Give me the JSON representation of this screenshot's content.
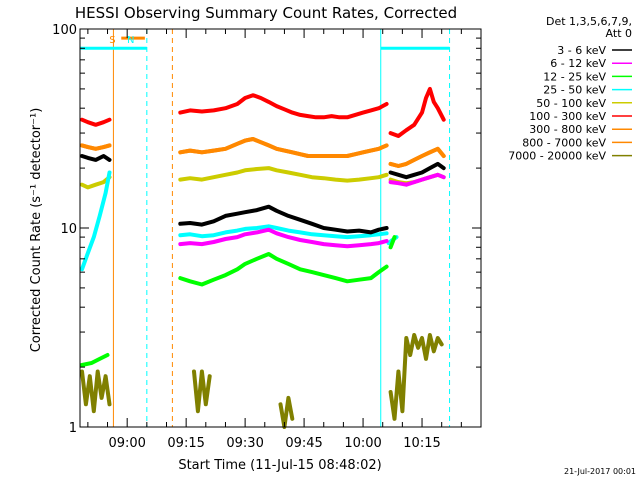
{
  "chart_data": {
    "type": "line",
    "title": "HESSI Observing Summary Count Rates, Corrected",
    "xlabel": "Start Time (11-Jul-15 08:48:02)",
    "ylabel": "Corrected Count Rate (s⁻¹ detector⁻¹)",
    "y_scale": "log",
    "ylim": [
      1,
      100
    ],
    "y_ticks": [
      {
        "value": 1,
        "label": "1"
      },
      {
        "value": 10,
        "label": "10"
      },
      {
        "value": 100,
        "label": "100"
      }
    ],
    "xlim_min": [
      528.0,
      630.0
    ],
    "x_ticks": [
      {
        "value": 540,
        "label": "09:00"
      },
      {
        "value": 555,
        "label": "09:15"
      },
      {
        "value": 570,
        "label": "09:30"
      },
      {
        "value": 585,
        "label": "09:45"
      },
      {
        "value": 600,
        "label": "10:00"
      },
      {
        "value": 615,
        "label": "10:15"
      }
    ],
    "legend": {
      "placement": "right",
      "header": [
        "Det 1,3,5,6,7,9,",
        "Att 0"
      ]
    },
    "series": [
      {
        "name": "3 - 6 keV",
        "color": "#000000",
        "segments": [
          {
            "x": [
              528.5,
              530,
              532,
              534,
              535.5
            ],
            "y": [
              23,
              22.5,
              22,
              23,
              22
            ]
          },
          {
            "x": [
              553.5,
              556,
              559,
              562,
              565,
              568,
              570,
              573,
              576,
              578,
              581,
              584,
              587,
              590,
              593,
              596,
              599,
              602,
              604,
              606
            ],
            "y": [
              10.5,
              10.6,
              10.4,
              10.8,
              11.5,
              11.8,
              12,
              12.3,
              12.8,
              12.2,
              11.5,
              11,
              10.5,
              10,
              9.8,
              9.6,
              9.7,
              9.5,
              9.8,
              10
            ]
          },
          {
            "x": [
              607,
              609,
              611,
              613,
              615,
              617,
              619,
              620.5
            ],
            "y": [
              19,
              18.5,
              18,
              18.5,
              19,
              20,
              21,
              20
            ]
          }
        ]
      },
      {
        "name": "6 - 12 keV",
        "color": "#ff00ff",
        "segments": [
          {
            "x": [
              553.5,
              556,
              559,
              562,
              565,
              568,
              570,
              573,
              576,
              578,
              581,
              584,
              587,
              590,
              593,
              596,
              599,
              602,
              604,
              606
            ],
            "y": [
              8.3,
              8.4,
              8.3,
              8.5,
              8.8,
              9,
              9.3,
              9.5,
              9.8,
              9.4,
              9,
              8.7,
              8.5,
              8.3,
              8.2,
              8.1,
              8.2,
              8.3,
              8.4,
              8.6
            ]
          },
          {
            "x": [
              607,
              609,
              611,
              613,
              615,
              617,
              619,
              620.5
            ],
            "y": [
              17,
              16.8,
              16.5,
              17,
              17.5,
              18,
              18.5,
              18
            ]
          }
        ]
      },
      {
        "name": "12 - 25 keV",
        "color": "#00ff00",
        "segments": [
          {
            "x": [
              528.5,
              531,
              533,
              535
            ],
            "y": [
              2.05,
              2.1,
              2.2,
              2.3
            ]
          },
          {
            "x": [
              553.5,
              556,
              559,
              562,
              565,
              568,
              570,
              573,
              576,
              578,
              581,
              584,
              587,
              590,
              593,
              596,
              599,
              602,
              604,
              606
            ],
            "y": [
              5.6,
              5.4,
              5.2,
              5.5,
              5.8,
              6.2,
              6.6,
              7,
              7.4,
              7,
              6.6,
              6.2,
              6,
              5.8,
              5.6,
              5.4,
              5.5,
              5.6,
              6,
              6.4
            ]
          },
          {
            "x": [
              607,
              608
            ],
            "y": [
              8,
              9
            ]
          }
        ]
      },
      {
        "name": "25 - 50 keV",
        "color": "#00ffff",
        "segments": [
          {
            "x": [
              528.5,
              530,
              531.5,
              533,
              534.5,
              535.5
            ],
            "y": [
              6.2,
              7.5,
              9,
              11.5,
              15,
              19
            ]
          },
          {
            "x": [
              553.5,
              556,
              559,
              562,
              565,
              568,
              570,
              573,
              576,
              578,
              581,
              584,
              587,
              590,
              593,
              596,
              599,
              602,
              604,
              606
            ],
            "y": [
              9.2,
              9.3,
              9.1,
              9.2,
              9.5,
              9.7,
              9.9,
              10,
              10.2,
              10,
              9.7,
              9.5,
              9.3,
              9.2,
              9.1,
              9,
              9.1,
              9.2,
              9.3,
              9.4
            ]
          },
          {
            "x": [
              606.5,
              607.5,
              608.5
            ],
            "y": [
              8.4,
              8.7,
              9
            ]
          }
        ]
      },
      {
        "name": "50 - 100 keV",
        "color": "#cccc00",
        "segments": [
          {
            "x": [
              528.5,
              530,
              532,
              534,
              535.5
            ],
            "y": [
              16.5,
              16,
              16.5,
              17,
              18
            ]
          },
          {
            "x": [
              553.5,
              556,
              559,
              562,
              565,
              568,
              570,
              573,
              576,
              578,
              581,
              584,
              587,
              590,
              593,
              596,
              599,
              602,
              604,
              606
            ],
            "y": [
              17.5,
              17.8,
              17.5,
              18,
              18.5,
              19,
              19.5,
              19.8,
              20,
              19.5,
              19,
              18.5,
              18,
              17.8,
              17.5,
              17.3,
              17.5,
              17.8,
              18,
              18.5
            ]
          },
          {
            "x": [
              607,
              609,
              611,
              613,
              615,
              617,
              619,
              620.5
            ],
            "y": [
              17.5,
              17,
              16.8,
              17,
              17.5,
              18,
              18.5,
              18
            ]
          }
        ]
      },
      {
        "name": "100 - 300 keV",
        "color": "#ff0000",
        "segments": [
          {
            "x": [
              528.5,
              530,
              532,
              534,
              535.5
            ],
            "y": [
              35,
              34,
              33,
              34,
              35
            ]
          },
          {
            "x": [
              553.5,
              556,
              559,
              562,
              565,
              568,
              570,
              572,
              574,
              576,
              578,
              580,
              582,
              584,
              586,
              588,
              590,
              592,
              594,
              596,
              598,
              600,
              602,
              604,
              606
            ],
            "y": [
              38,
              39,
              38.5,
              39,
              40,
              42,
              45,
              46.5,
              45,
              43,
              41,
              39.5,
              38,
              37,
              36.5,
              36,
              36,
              36.5,
              36,
              36,
              37,
              38,
              39,
              40,
              42
            ]
          },
          {
            "x": [
              607,
              609,
              611,
              613,
              615,
              616,
              617,
              618,
              619,
              620.5
            ],
            "y": [
              30,
              29,
              31,
              33,
              38,
              45,
              50,
              43,
              40,
              35
            ]
          }
        ]
      },
      {
        "name": "300 - 800 keV",
        "color": "#ff8800",
        "segments": [
          {
            "x": [
              528.5,
              530,
              532,
              534,
              535.5
            ],
            "y": [
              26,
              25.5,
              25,
              25.5,
              26
            ]
          },
          {
            "x": [
              553.5,
              556,
              559,
              562,
              565,
              568,
              570,
              572,
              574,
              576,
              578,
              580,
              582,
              584,
              586,
              588,
              590,
              592,
              594,
              596,
              598,
              600,
              602,
              604,
              606
            ],
            "y": [
              24,
              24.5,
              24,
              24.5,
              25,
              26.5,
              27.5,
              28,
              27,
              26,
              25,
              24.5,
              24,
              23.5,
              23,
              23,
              23,
              23,
              23,
              23,
              23.5,
              24,
              24.5,
              25,
              26
            ]
          },
          {
            "x": [
              607,
              609,
              611,
              613,
              615,
              617,
              619,
              620.5
            ],
            "y": [
              21,
              20.5,
              21,
              22,
              23,
              24,
              25,
              23
            ]
          }
        ]
      },
      {
        "name": "800 - 7000 keV",
        "color": "#ff8800",
        "segments": [
          {
            "x": [
              528.5,
              530,
              532,
              534,
              535.5
            ],
            "y": [
              26,
              25.5,
              25,
              25.5,
              26
            ]
          },
          {
            "x": [
              553.5,
              556,
              559,
              562,
              565,
              568,
              570,
              572,
              574,
              576,
              578,
              580,
              582,
              584,
              586,
              588,
              590,
              592,
              594,
              596,
              598,
              600,
              602,
              604,
              606
            ],
            "y": [
              24,
              24.5,
              24,
              24.5,
              25,
              26.5,
              27.5,
              28,
              27,
              26,
              25,
              24.5,
              24,
              23.5,
              23,
              23,
              23,
              23,
              23,
              23,
              23.5,
              24,
              24.5,
              25,
              26
            ]
          },
          {
            "x": [
              607,
              609,
              611,
              613,
              615,
              617,
              619,
              620.5
            ],
            "y": [
              21,
              20.5,
              21,
              22,
              23,
              24,
              25,
              23
            ]
          }
        ]
      },
      {
        "name": "7000 - 20000 keV",
        "color": "#808000",
        "segments": [
          {
            "x": [
              528.5,
              529.5,
              530.5,
              531.5,
              532.5,
              533.5,
              534.5,
              535.5
            ],
            "y": [
              1.9,
              1.3,
              1.8,
              1.2,
              1.9,
              1.4,
              1.8,
              1.3
            ]
          },
          {
            "x": [
              557,
              558,
              559,
              560,
              561
            ],
            "y": [
              1.9,
              1.2,
              1.9,
              1.3,
              1.8
            ]
          },
          {
            "x": [
              579,
              580,
              581,
              582
            ],
            "y": [
              1.3,
              1.0,
              1.4,
              1.1
            ]
          },
          {
            "x": [
              607,
              608,
              609,
              610,
              611,
              612,
              613,
              614,
              615,
              616,
              617,
              618,
              619,
              620
            ],
            "y": [
              1.5,
              1.1,
              1.9,
              1.2,
              2.8,
              2.3,
              2.9,
              2.5,
              2.8,
              2.2,
              2.9,
              2.4,
              2.8,
              2.6
            ]
          }
        ]
      }
    ],
    "annotations": [
      {
        "label": "S",
        "color": "#ff8800",
        "x": 538.5,
        "bar": [
          538.5,
          544.5
        ],
        "bar_y": 90
      },
      {
        "label": "N",
        "color": "#00ffff",
        "x": 543.0
      },
      {
        "label": "",
        "color": "#00ffff",
        "bar": [
          528.0,
          545.0
        ],
        "bar_y": 80
      },
      {
        "label": "",
        "color": "#00ffff",
        "bar": [
          604.5,
          622.0
        ],
        "bar_y": 80
      }
    ],
    "vertical_lines": [
      {
        "x": 536.5,
        "color": "#ff8800",
        "style": "solid"
      },
      {
        "x": 545.0,
        "color": "#00ffff",
        "style": "dashed"
      },
      {
        "x": 551.5,
        "color": "#ff8800",
        "style": "dashed"
      },
      {
        "x": 604.5,
        "color": "#00ffff",
        "style": "solid"
      },
      {
        "x": 622.0,
        "color": "#00ffff",
        "style": "dashed"
      }
    ],
    "footer_date": "21-Jul-2017 00:01"
  }
}
